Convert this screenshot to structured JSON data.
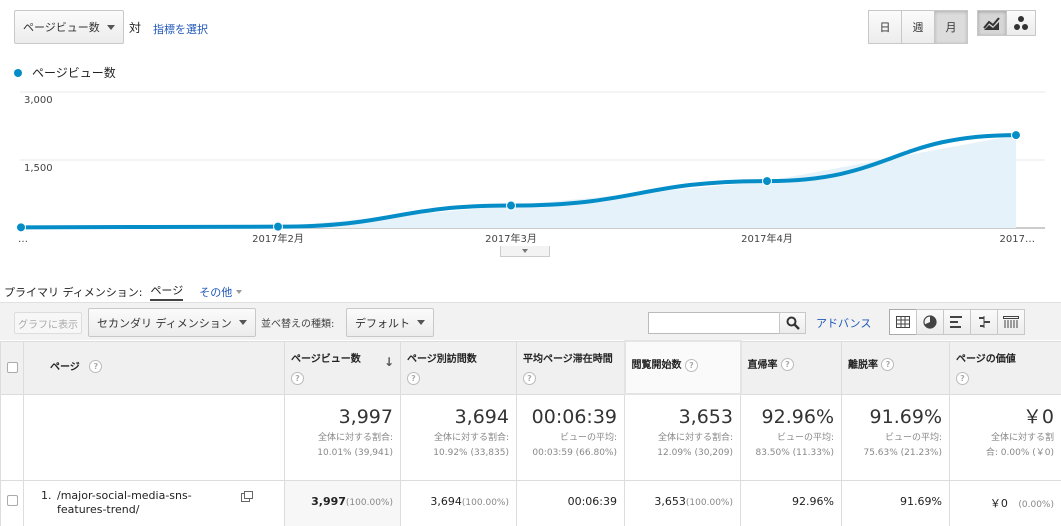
{
  "header": {
    "metric_select": "ページビュー数",
    "vs_label": "対",
    "select_metric_link": "指標を選択",
    "periods": [
      "日",
      "週",
      "月"
    ],
    "active_period": "月",
    "chart_types": [
      "line-chart-icon",
      "motion-chart-icon"
    ]
  },
  "legend": {
    "label": "ページビュー数",
    "color": "#058dc7"
  },
  "chart_data": {
    "type": "area",
    "x_tick_labels": [
      "…",
      "2017年2月",
      "2017年3月",
      "2017年4月",
      "2017…"
    ],
    "y_tick_labels": [
      "3,000",
      "1,500"
    ],
    "ylim": [
      0,
      3000
    ],
    "series": [
      {
        "name": "ページビュー数",
        "values": [
          15,
          30,
          495,
          1035,
          2050
        ],
        "color": "#058dc7"
      }
    ],
    "grid": true
  },
  "dimension": {
    "label": "プライマリ ディメンション:",
    "current": "ページ",
    "other": "その他"
  },
  "toolbar": {
    "graph_button": "グラフに表示",
    "secondary_dim": "セカンダリ ディメンション",
    "sort_label": "並べ替えの種類:",
    "sort_value": "デフォルト",
    "search_placeholder": "",
    "advance_link": "アドバンス",
    "view_icons": [
      "grid-view-icon",
      "pie-view-icon",
      "bar-view-icon",
      "comparison-view-icon",
      "pivot-view-icon"
    ]
  },
  "table": {
    "headers": {
      "page": "ページ",
      "pageviews": "ページビュー数",
      "unique_pageviews": "ページ別訪問数",
      "avg_time": "平均ページ滞在時間",
      "entrances": "閲覧開始数",
      "bounce_rate": "直帰率",
      "exit_rate": "離脱率",
      "page_value": "ページの価値"
    },
    "help_glyph": "?",
    "totals": {
      "pageviews": {
        "value": "3,997",
        "sub1": "全体に対する割合:",
        "sub2": "10.01% (39,941)"
      },
      "unique_pageviews": {
        "value": "3,694",
        "sub1": "全体に対する割合:",
        "sub2": "10.92% (33,835)"
      },
      "avg_time": {
        "value": "00:06:39",
        "sub1": "ビューの平均:",
        "sub2": "00:03:59 (66.80%)"
      },
      "entrances": {
        "value": "3,653",
        "sub1": "全体に対する割合:",
        "sub2": "12.09% (30,209)"
      },
      "bounce_rate": {
        "value": "92.96%",
        "sub1": "ビューの平均:",
        "sub2": "83.50% (11.33%)"
      },
      "exit_rate": {
        "value": "91.69%",
        "sub1": "ビューの平均:",
        "sub2": "75.63% (21.23%)"
      },
      "page_value": {
        "value": "￥0",
        "sub1": "全体に対する割",
        "sub2": "合: 0.00% (￥0)"
      }
    },
    "rows": [
      {
        "num": "1.",
        "page": "/major-social-media-sns-features-trend/",
        "pageviews": "3,997",
        "pageviews_pct": "(100.00%)",
        "unique_pageviews": "3,694",
        "unique_pageviews_pct": "(100.00%)",
        "avg_time": "00:06:39",
        "entrances": "3,653",
        "entrances_pct": "(100.00%)",
        "bounce_rate": "92.96%",
        "exit_rate": "91.69%",
        "page_value": "￥0",
        "page_value_pct": "(0.00%)"
      }
    ]
  }
}
